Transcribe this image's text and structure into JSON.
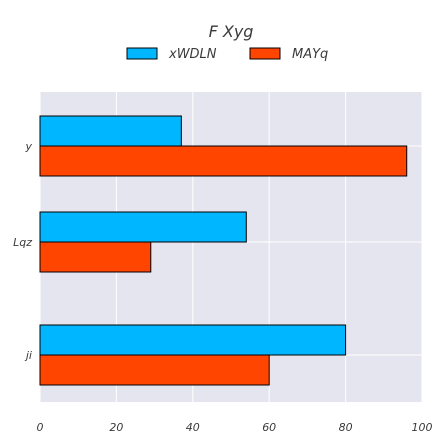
{
  "chart_data": {
    "type": "bar",
    "orientation": "horizontal",
    "title": "F Xyg",
    "xlabel": "",
    "ylabel": "",
    "categories": [
      "y",
      "Lqz",
      "ji"
    ],
    "series": [
      {
        "name": "xWDLN",
        "color": "#00b7ff",
        "values": [
          37,
          54,
          80
        ]
      },
      {
        "name": "MAYq",
        "color": "#ff4500",
        "values": [
          96,
          29,
          60
        ]
      }
    ],
    "xlim": [
      0,
      100
    ],
    "xticks": [
      0,
      20,
      40,
      60,
      80,
      100
    ],
    "grid": true,
    "legend_position": "top-center",
    "background": "#e5e5ef"
  }
}
